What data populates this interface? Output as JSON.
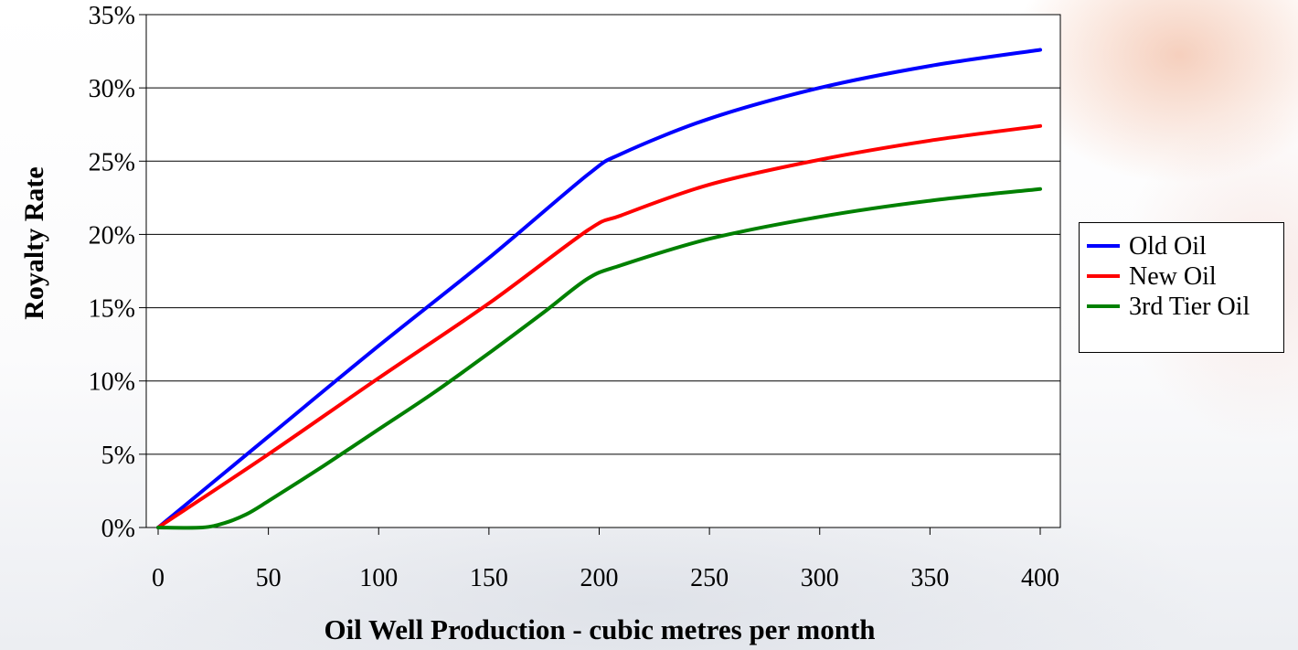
{
  "chart_data": {
    "type": "line",
    "title": "",
    "xlabel": "Oil Well Production - cubic metres per month",
    "ylabel": "Royalty Rate",
    "xlim": [
      0,
      400
    ],
    "ylim": [
      0,
      35
    ],
    "x_ticks": [
      "0",
      "50",
      "100",
      "150",
      "200",
      "250",
      "300",
      "350",
      "400"
    ],
    "y_ticks": [
      "0%",
      "5%",
      "10%",
      "15%",
      "20%",
      "25%",
      "30%",
      "35%"
    ],
    "grid": "horizontal",
    "legend": "right",
    "series": [
      {
        "name": "Old Oil",
        "color": "#0000ff",
        "points": [
          [
            0,
            0
          ],
          [
            50,
            6.2
          ],
          [
            100,
            12.4
          ],
          [
            150,
            18.4
          ],
          [
            195,
            24.1
          ],
          [
            210,
            25.5
          ],
          [
            250,
            27.9
          ],
          [
            300,
            30.0
          ],
          [
            350,
            31.5
          ],
          [
            400,
            32.6
          ]
        ]
      },
      {
        "name": "New Oil",
        "color": "#ff0000",
        "points": [
          [
            0,
            0
          ],
          [
            50,
            5.0
          ],
          [
            100,
            10.2
          ],
          [
            150,
            15.3
          ],
          [
            195,
            20.3
          ],
          [
            210,
            21.3
          ],
          [
            250,
            23.4
          ],
          [
            300,
            25.1
          ],
          [
            350,
            26.4
          ],
          [
            400,
            27.4
          ]
        ]
      },
      {
        "name": "3rd Tier Oil",
        "color": "#008000",
        "points": [
          [
            0,
            0
          ],
          [
            20,
            0
          ],
          [
            30,
            0.3
          ],
          [
            40,
            0.9
          ],
          [
            50,
            1.8
          ],
          [
            75,
            4.2
          ],
          [
            100,
            6.7
          ],
          [
            125,
            9.2
          ],
          [
            150,
            11.9
          ],
          [
            175,
            14.7
          ],
          [
            195,
            17.0
          ],
          [
            210,
            17.9
          ],
          [
            250,
            19.7
          ],
          [
            300,
            21.2
          ],
          [
            350,
            22.3
          ],
          [
            400,
            23.1
          ]
        ]
      }
    ]
  }
}
